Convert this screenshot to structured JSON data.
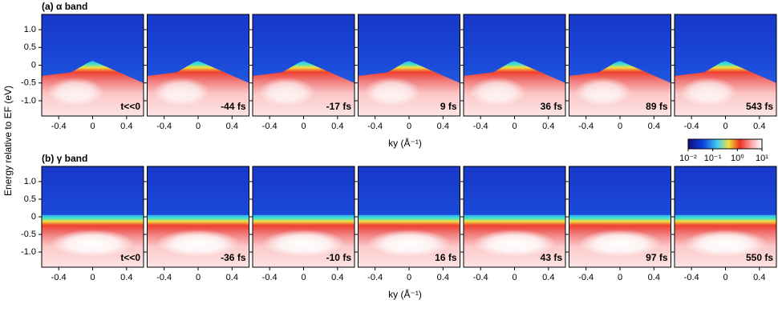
{
  "chart_data": [
    {
      "type": "heatmap",
      "title": "(a) α band",
      "panels": [
        "t<<0",
        "-44 fs",
        "-17 fs",
        "9 fs",
        "36 fs",
        "89 fs",
        "543 fs"
      ],
      "xlabel": "ky (Å⁻¹)",
      "ylabel": "Energy relative to EF (eV)",
      "xlim": [
        -0.6,
        0.6
      ],
      "ylim": [
        -1.43,
        1.43
      ],
      "xticks": [
        -0.4,
        0,
        0.4
      ],
      "yticks": [
        {
          "value": 1,
          "label": "1.0"
        },
        0.5,
        0,
        -0.5,
        {
          "value": -1,
          "label": "-1.0"
        }
      ]
    },
    {
      "type": "heatmap",
      "title": "(b) γ band",
      "panels": [
        "t<<0",
        "-36 fs",
        "-10 fs",
        "16 fs",
        "43 fs",
        "97 fs",
        "550 fs"
      ],
      "xlabel": "ky (Å⁻¹)",
      "xlim": [
        -0.6,
        0.6
      ],
      "ylim": [
        -1.43,
        1.43
      ],
      "xticks": [
        -0.4,
        0,
        0.4
      ],
      "yticks": [
        {
          "value": 1,
          "label": "1.0"
        },
        0.5,
        0,
        -0.5,
        {
          "value": -1,
          "label": "-1.0"
        }
      ],
      "colorbar": {
        "log": true,
        "lim": [
          0.01,
          10
        ],
        "ticks": [
          {
            "value": 0.01,
            "label": "10⁻²"
          },
          {
            "value": 0.1,
            "label": "10⁻¹"
          },
          {
            "value": 1,
            "label": "10⁰"
          },
          {
            "value": 10,
            "label": "10¹"
          }
        ]
      }
    }
  ]
}
